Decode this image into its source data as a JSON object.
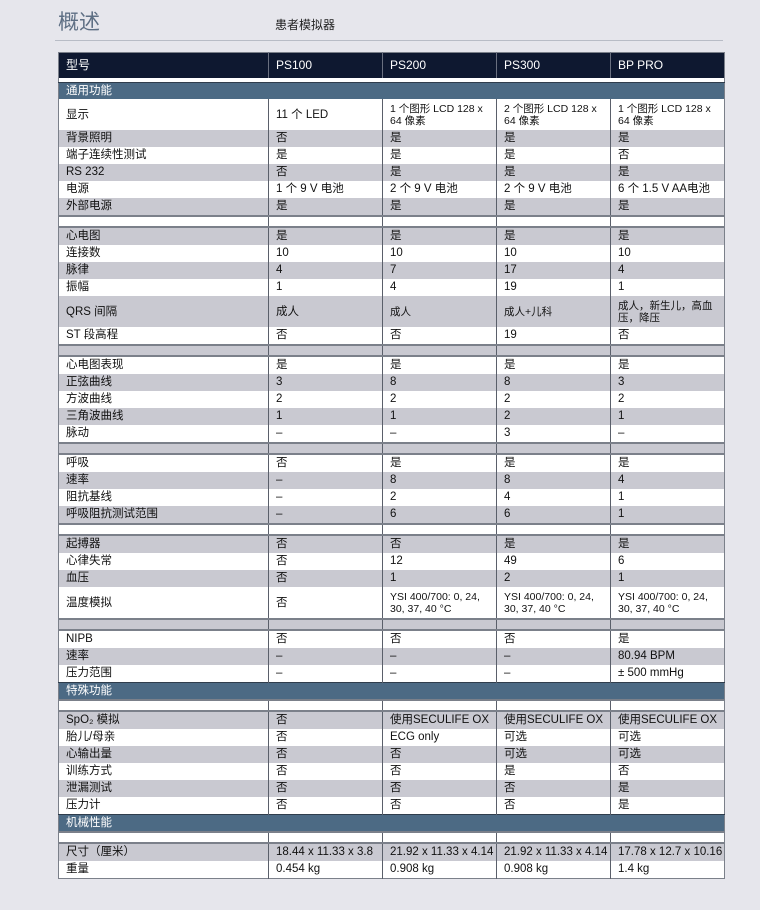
{
  "page": {
    "title": "概述",
    "subtitle": "患者模拟器"
  },
  "table": {
    "headers": [
      "型号",
      "PS100",
      "PS200",
      "PS300",
      "BP PRO"
    ],
    "rows": [
      {
        "type": "gap"
      },
      {
        "type": "section",
        "label": "通用功能"
      },
      {
        "type": "row",
        "tall": true,
        "cells": [
          "显示",
          "11 个 LED",
          "1 个图形 LCD 128 x 64 像素",
          "2 个图形 LCD 128 x 64 像素",
          "1 个图形 LCD 128 x 64 像素"
        ]
      },
      {
        "type": "row",
        "cells": [
          "背景照明",
          "否",
          "是",
          "是",
          "是"
        ]
      },
      {
        "type": "row",
        "cells": [
          "端子连续性测试",
          "是",
          "是",
          "是",
          "否"
        ]
      },
      {
        "type": "row",
        "cells": [
          "RS 232",
          "否",
          "是",
          "是",
          "是"
        ]
      },
      {
        "type": "row",
        "cells": [
          "电源",
          "1 个 9 V 电池",
          "2 个 9 V 电池",
          "2 个 9 V 电池",
          "6 个 1.5 V AA电池"
        ]
      },
      {
        "type": "row",
        "cells": [
          "外部电源",
          "是",
          "是",
          "是",
          "是"
        ]
      },
      {
        "type": "spacer"
      },
      {
        "type": "row",
        "cells": [
          "心电图",
          "是",
          "是",
          "是",
          "是"
        ]
      },
      {
        "type": "row",
        "cells": [
          "连接数",
          "10",
          "10",
          "10",
          "10"
        ]
      },
      {
        "type": "row",
        "cells": [
          "脉律",
          "4",
          "7",
          "17",
          "4"
        ]
      },
      {
        "type": "row",
        "cells": [
          "振幅",
          "1",
          "4",
          "19",
          "1"
        ]
      },
      {
        "type": "row",
        "tall": true,
        "cells": [
          "QRS 间隔",
          "成人",
          "成人",
          "成人+儿科",
          "成人，新生儿，高血压，降压"
        ]
      },
      {
        "type": "row",
        "cells": [
          "ST 段高程",
          "否",
          "否",
          "19",
          "否"
        ]
      },
      {
        "type": "spacer"
      },
      {
        "type": "row",
        "cells": [
          "心电图表现",
          "是",
          "是",
          "是",
          "是"
        ]
      },
      {
        "type": "row",
        "cells": [
          "正弦曲线",
          "3",
          "8",
          "8",
          "3"
        ]
      },
      {
        "type": "row",
        "cells": [
          "方波曲线",
          "2",
          "2",
          "2",
          "2"
        ]
      },
      {
        "type": "row",
        "cells": [
          "三角波曲线",
          "1",
          "1",
          "2",
          "1"
        ]
      },
      {
        "type": "row",
        "cells": [
          "脉动",
          "–",
          "–",
          "3",
          "–"
        ]
      },
      {
        "type": "spacer"
      },
      {
        "type": "row",
        "cells": [
          "呼吸",
          "否",
          "是",
          "是",
          "是"
        ]
      },
      {
        "type": "row",
        "cells": [
          "速率",
          "–",
          "8",
          "8",
          "4"
        ]
      },
      {
        "type": "row",
        "cells": [
          "阻抗基线",
          "–",
          "2",
          "4",
          "1"
        ]
      },
      {
        "type": "row",
        "cells": [
          "呼吸阻抗测试范围",
          "–",
          "6",
          "6",
          "1"
        ]
      },
      {
        "type": "spacer"
      },
      {
        "type": "row",
        "cells": [
          "起搏器",
          "否",
          "否",
          "是",
          "是"
        ]
      },
      {
        "type": "row",
        "cells": [
          "心律失常",
          "否",
          "12",
          "49",
          "6"
        ]
      },
      {
        "type": "row",
        "cells": [
          "血压",
          "否",
          "1",
          "2",
          "1"
        ]
      },
      {
        "type": "row",
        "tall": true,
        "cells": [
          "温度模拟",
          "否",
          "YSI 400/700: 0, 24, 30, 37, 40 °C",
          "YSI 400/700: 0, 24, 30, 37, 40 °C",
          "YSI 400/700: 0, 24, 30, 37, 40 °C"
        ]
      },
      {
        "type": "spacer"
      },
      {
        "type": "row",
        "cells": [
          "NIPB",
          "否",
          "否",
          "否",
          "是"
        ]
      },
      {
        "type": "row",
        "cells": [
          "速率",
          "–",
          "–",
          "–",
          "80.94 BPM"
        ]
      },
      {
        "type": "row",
        "cells": [
          "压力范围",
          "–",
          "–",
          "–",
          "± 500 mmHg"
        ]
      },
      {
        "type": "section",
        "label": "特殊功能"
      },
      {
        "type": "spacer"
      },
      {
        "type": "row",
        "cells": [
          "SpO₂ 模拟",
          "否",
          "使用SECULIFE OX",
          "使用SECULIFE OX",
          "使用SECULIFE OX"
        ]
      },
      {
        "type": "row",
        "cells": [
          "胎儿/母亲",
          "否",
          "ECG only",
          "可选",
          "可选"
        ]
      },
      {
        "type": "row",
        "cells": [
          "心输出量",
          "否",
          "否",
          "可选",
          "可选"
        ]
      },
      {
        "type": "row",
        "cells": [
          "训练方式",
          "否",
          "否",
          "是",
          "否"
        ]
      },
      {
        "type": "row",
        "cells": [
          "泄漏测试",
          "否",
          "否",
          "否",
          "是"
        ]
      },
      {
        "type": "row",
        "cells": [
          "压力计",
          "否",
          "否",
          "否",
          "是"
        ]
      },
      {
        "type": "section",
        "label": "机械性能"
      },
      {
        "type": "spacer"
      },
      {
        "type": "row",
        "cells": [
          "尺寸（厘米）",
          "18.44 x 11.33 x 3.8",
          "21.92 x 11.33 x 4.14",
          "21.92 x 11.33 x 4.14",
          "17.78 x 12.7 x 10.16"
        ]
      },
      {
        "type": "row",
        "cells": [
          "重量",
          "0.454 kg",
          "0.908 kg",
          "0.908 kg",
          "1.4 kg"
        ]
      }
    ]
  }
}
